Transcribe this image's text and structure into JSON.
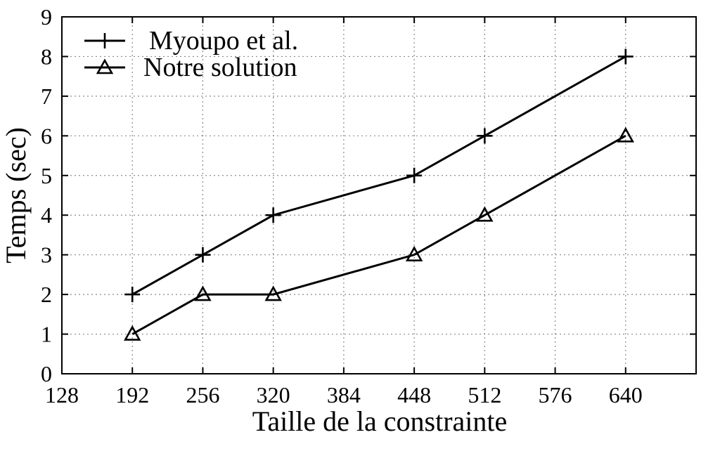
{
  "chart_data": {
    "type": "line",
    "xlabel": "Taille de la constrainte",
    "ylabel": "Temps (sec)",
    "xlim": [
      128,
      704
    ],
    "ylim": [
      0,
      9
    ],
    "xticks": [
      128,
      192,
      256,
      320,
      384,
      448,
      512,
      576,
      640
    ],
    "yticks": [
      0,
      1,
      2,
      3,
      4,
      5,
      6,
      7,
      8,
      9
    ],
    "grid": true,
    "legend_position": "top-left",
    "series": [
      {
        "name": "Myoupo et al.",
        "marker": "plus",
        "x": [
          192,
          256,
          320,
          448,
          512,
          640
        ],
        "y": [
          2,
          3,
          4,
          5,
          6,
          8
        ]
      },
      {
        "name": "Notre solution",
        "marker": "triangle",
        "x": [
          192,
          256,
          320,
          448,
          512,
          640
        ],
        "y": [
          1,
          2,
          2,
          3,
          4,
          6
        ]
      }
    ]
  }
}
